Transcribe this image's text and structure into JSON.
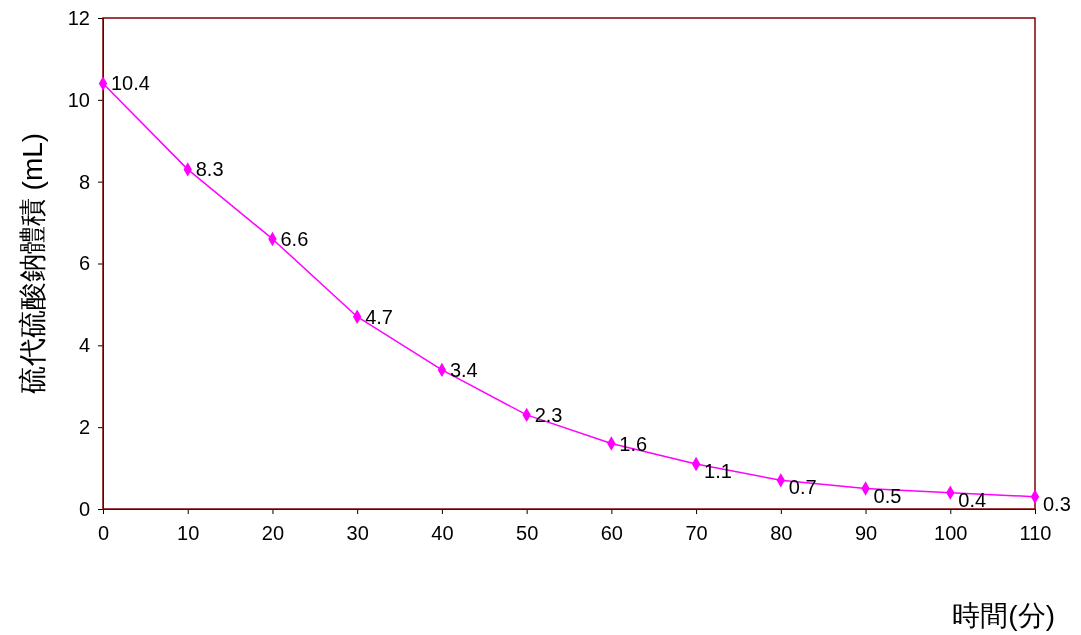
{
  "chart_data": {
    "type": "line",
    "xlabel": "時間(分)",
    "ylabel": "硫代硫酸鈉體積 (mL)",
    "x": [
      0,
      10,
      20,
      30,
      40,
      50,
      60,
      70,
      80,
      90,
      100,
      110
    ],
    "series": [
      {
        "color": "#ff00ff",
        "values": [
          10.4,
          8.3,
          6.6,
          4.7,
          3.4,
          2.3,
          1.6,
          1.1,
          0.7,
          0.5,
          0.4,
          0.3
        ]
      }
    ],
    "xlim": [
      0,
      110
    ],
    "xticks": [
      0,
      10,
      20,
      30,
      40,
      50,
      60,
      70,
      80,
      90,
      100,
      110
    ],
    "ylim": [
      0,
      12
    ],
    "yticks": [
      0,
      2,
      4,
      6,
      8,
      10,
      12
    ],
    "grid": false,
    "marker": "diamond",
    "line_style": "solid",
    "data_labels": true
  }
}
